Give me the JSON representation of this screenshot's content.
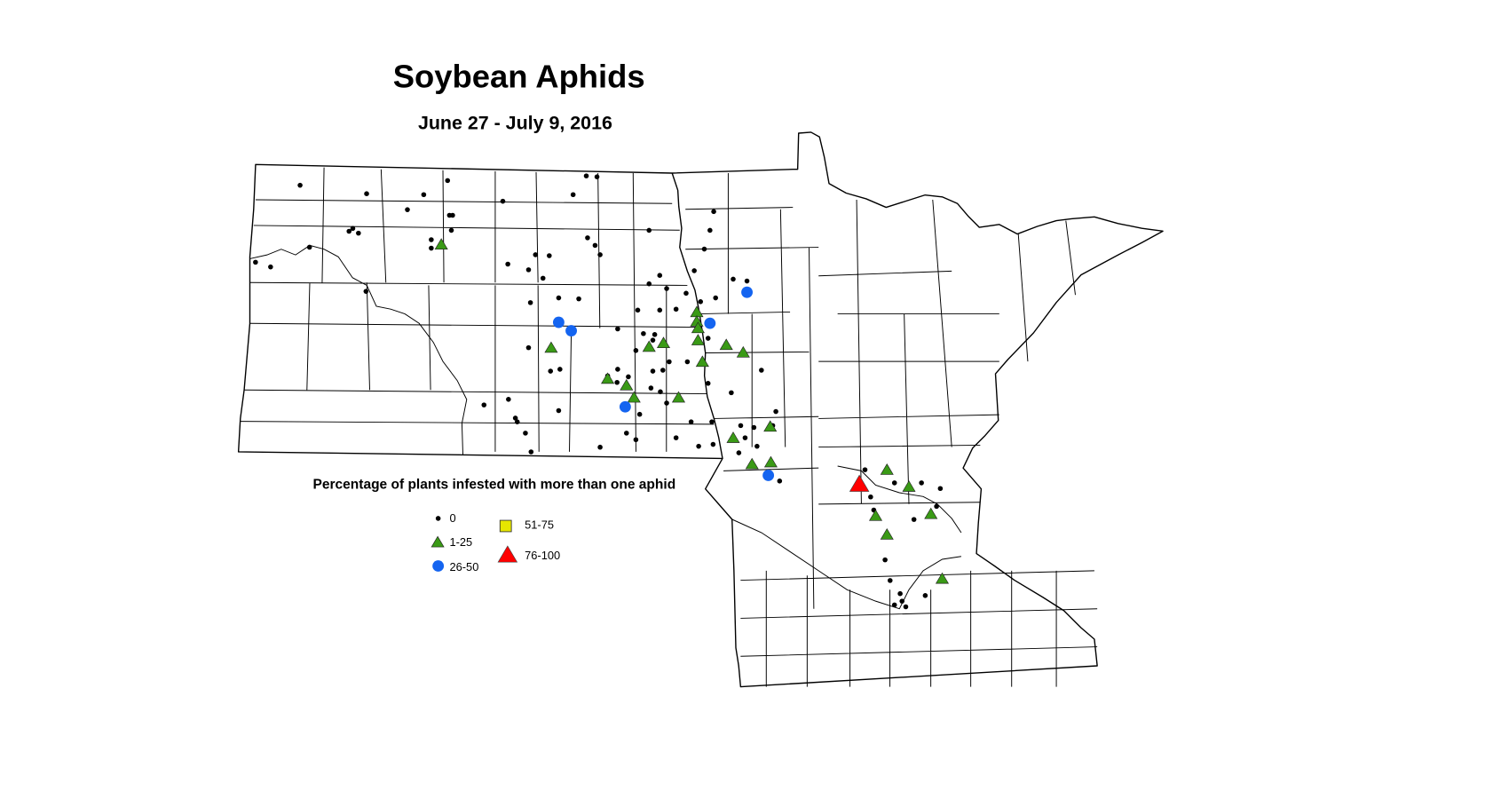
{
  "title": "Soybean Aphids",
  "subtitle": "June 27 - July 9, 2016",
  "legend": {
    "title": "Percentage of plants infested with more than one aphid",
    "items": [
      {
        "key": "c0",
        "label": "0",
        "symbol": "dot",
        "color": "#000000"
      },
      {
        "key": "c1",
        "label": "1-25",
        "symbol": "triangle",
        "color": "#3a9a16"
      },
      {
        "key": "c2",
        "label": "26-50",
        "symbol": "circle",
        "color": "#1464f0"
      },
      {
        "key": "c3",
        "label": "51-75",
        "symbol": "square",
        "color": "#e6e600"
      },
      {
        "key": "c4",
        "label": "76-100",
        "symbol": "big-triangle",
        "color": "#ff0000"
      }
    ]
  },
  "observations_lon_lat": {
    "c0": [
      [
        -103.25,
        48.82
      ],
      [
        -102.19,
        48.73
      ],
      [
        -100.9,
        48.87
      ],
      [
        -101.28,
        48.72
      ],
      [
        -101.54,
        48.56
      ],
      [
        -100.87,
        48.5
      ],
      [
        -100.82,
        48.5
      ],
      [
        -100.02,
        48.65
      ],
      [
        -98.69,
        48.92
      ],
      [
        -98.52,
        48.91
      ],
      [
        -98.9,
        48.72
      ],
      [
        -96.66,
        48.54
      ],
      [
        -102.47,
        48.33
      ],
      [
        -102.41,
        48.36
      ],
      [
        -102.32,
        48.31
      ],
      [
        -100.84,
        48.34
      ],
      [
        -101.16,
        48.24
      ],
      [
        -101.16,
        48.15
      ],
      [
        -97.69,
        48.34
      ],
      [
        -96.72,
        48.34
      ],
      [
        -98.67,
        48.26
      ],
      [
        -98.55,
        48.18
      ],
      [
        -98.47,
        48.08
      ],
      [
        -99.5,
        48.08
      ],
      [
        -99.28,
        48.07
      ],
      [
        -99.94,
        47.98
      ],
      [
        -99.61,
        47.92
      ],
      [
        -99.38,
        47.83
      ],
      [
        -103.96,
        48.0
      ],
      [
        -103.72,
        47.95
      ],
      [
        -103.1,
        48.16
      ],
      [
        -102.2,
        47.69
      ],
      [
        -96.81,
        48.14
      ],
      [
        -96.97,
        47.91
      ],
      [
        -96.35,
        47.82
      ],
      [
        -96.13,
        47.8
      ],
      [
        -97.52,
        47.86
      ],
      [
        -97.69,
        47.77
      ],
      [
        -97.41,
        47.72
      ],
      [
        -97.1,
        47.67
      ],
      [
        -99.13,
        47.62
      ],
      [
        -99.58,
        47.57
      ],
      [
        -98.81,
        47.61
      ],
      [
        -97.87,
        47.49
      ],
      [
        -97.52,
        47.49
      ],
      [
        -97.26,
        47.5
      ],
      [
        -96.87,
        47.58
      ],
      [
        -96.63,
        47.62
      ],
      [
        -98.19,
        47.29
      ],
      [
        -97.78,
        47.24
      ],
      [
        -97.6,
        47.23
      ],
      [
        -97.9,
        47.06
      ],
      [
        -97.63,
        47.17
      ],
      [
        -99.26,
        46.84
      ],
      [
        -99.11,
        46.86
      ],
      [
        -99.61,
        47.09
      ],
      [
        -98.19,
        46.86
      ],
      [
        -98.35,
        46.79
      ],
      [
        -98.02,
        46.78
      ],
      [
        -98.2,
        46.72
      ],
      [
        -97.63,
        46.84
      ],
      [
        -97.47,
        46.85
      ],
      [
        -97.66,
        46.66
      ],
      [
        -97.51,
        46.62
      ],
      [
        -97.37,
        46.94
      ],
      [
        -97.08,
        46.94
      ],
      [
        -96.75,
        47.19
      ],
      [
        -96.75,
        46.71
      ],
      [
        -96.38,
        46.61
      ],
      [
        -95.9,
        46.85
      ],
      [
        -100.32,
        46.48
      ],
      [
        -99.93,
        46.54
      ],
      [
        -99.82,
        46.34
      ],
      [
        -99.79,
        46.3
      ],
      [
        -99.13,
        46.42
      ],
      [
        -97.84,
        46.38
      ],
      [
        -97.41,
        46.5
      ],
      [
        -97.02,
        46.3
      ],
      [
        -96.69,
        46.3
      ],
      [
        -96.23,
        46.26
      ],
      [
        -96.02,
        46.24
      ],
      [
        -95.67,
        46.41
      ],
      [
        -95.72,
        46.26
      ],
      [
        -96.16,
        46.13
      ],
      [
        -95.97,
        46.04
      ],
      [
        -96.26,
        45.97
      ],
      [
        -98.05,
        46.18
      ],
      [
        -97.9,
        46.11
      ],
      [
        -97.26,
        46.13
      ],
      [
        -96.67,
        46.06
      ],
      [
        -96.9,
        46.04
      ],
      [
        -98.47,
        46.03
      ],
      [
        -99.57,
        45.98
      ],
      [
        -99.66,
        46.18
      ],
      [
        -95.61,
        45.67
      ],
      [
        -94.25,
        45.79
      ],
      [
        -93.78,
        45.65
      ],
      [
        -93.35,
        45.65
      ],
      [
        -93.05,
        45.59
      ],
      [
        -94.16,
        45.5
      ],
      [
        -93.11,
        45.4
      ],
      [
        -93.47,
        45.26
      ],
      [
        -93.93,
        44.83
      ],
      [
        -93.85,
        44.61
      ],
      [
        -93.69,
        44.47
      ],
      [
        -93.66,
        44.39
      ],
      [
        -93.6,
        44.33
      ],
      [
        -93.78,
        44.35
      ],
      [
        -93.29,
        44.45
      ],
      [
        -94.11,
        45.36
      ]
    ],
    "c1": [
      [
        -101.0,
        48.19
      ],
      [
        -99.25,
        47.09
      ],
      [
        -98.35,
        46.76
      ],
      [
        -98.05,
        46.69
      ],
      [
        -97.93,
        46.56
      ],
      [
        -97.69,
        47.1
      ],
      [
        -97.46,
        47.14
      ],
      [
        -97.22,
        46.56
      ],
      [
        -96.93,
        47.47
      ],
      [
        -96.93,
        47.37
      ],
      [
        -96.91,
        47.3
      ],
      [
        -96.91,
        47.17
      ],
      [
        -96.84,
        46.94
      ],
      [
        -96.46,
        47.12
      ],
      [
        -96.19,
        47.04
      ],
      [
        -96.35,
        46.13
      ],
      [
        -95.76,
        46.25
      ],
      [
        -96.05,
        45.85
      ],
      [
        -95.75,
        45.87
      ],
      [
        -93.9,
        45.79
      ],
      [
        -93.55,
        45.61
      ],
      [
        -94.08,
        45.3
      ],
      [
        -93.2,
        45.32
      ],
      [
        -93.9,
        45.1
      ],
      [
        -93.02,
        44.63
      ]
    ],
    "c2": [
      [
        -99.13,
        47.36
      ],
      [
        -98.93,
        47.27
      ],
      [
        -96.72,
        47.35
      ],
      [
        -96.13,
        47.68
      ],
      [
        -98.07,
        46.46
      ],
      [
        -95.79,
        45.73
      ]
    ],
    "c3": [],
    "c4": [
      [
        -94.34,
        45.64
      ]
    ]
  }
}
